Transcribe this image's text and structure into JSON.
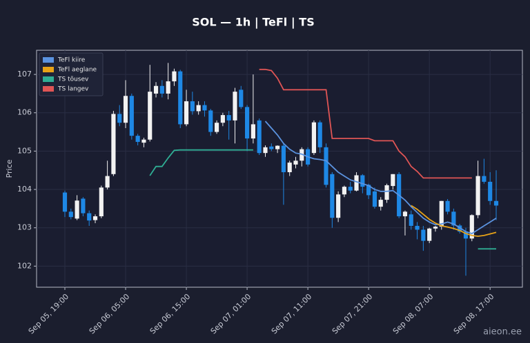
{
  "chart_data": {
    "type": "candlestick",
    "title": "SOL — 1h  |  TeFl  |  TS",
    "ylabel": "Price",
    "watermark": "aieon.ee",
    "ylim": [
      101.45,
      107.63
    ],
    "yticks": [
      102,
      103,
      104,
      105,
      106,
      107
    ],
    "grid": true,
    "legend": "upper left",
    "up_color": "#f2f2f2",
    "down_color": "#1e88e5",
    "x": [
      "Sep 05, 19:00",
      "Sep 05, 20:00",
      "Sep 05, 21:00",
      "Sep 05, 22:00",
      "Sep 05, 23:00",
      "Sep 06, 00:00",
      "Sep 06, 01:00",
      "Sep 06, 02:00",
      "Sep 06, 03:00",
      "Sep 06, 04:00",
      "Sep 06, 05:00",
      "Sep 06, 06:00",
      "Sep 06, 07:00",
      "Sep 06, 08:00",
      "Sep 06, 09:00",
      "Sep 06, 10:00",
      "Sep 06, 11:00",
      "Sep 06, 12:00",
      "Sep 06, 13:00",
      "Sep 06, 14:00",
      "Sep 06, 15:00",
      "Sep 06, 16:00",
      "Sep 06, 17:00",
      "Sep 06, 18:00",
      "Sep 06, 19:00",
      "Sep 06, 20:00",
      "Sep 06, 21:00",
      "Sep 06, 22:00",
      "Sep 06, 23:00",
      "Sep 07, 00:00",
      "Sep 07, 01:00",
      "Sep 07, 02:00",
      "Sep 07, 03:00",
      "Sep 07, 04:00",
      "Sep 07, 05:00",
      "Sep 07, 06:00",
      "Sep 07, 07:00",
      "Sep 07, 08:00",
      "Sep 07, 09:00",
      "Sep 07, 10:00",
      "Sep 07, 11:00",
      "Sep 07, 12:00",
      "Sep 07, 13:00",
      "Sep 07, 14:00",
      "Sep 07, 15:00",
      "Sep 07, 16:00",
      "Sep 07, 17:00",
      "Sep 07, 18:00",
      "Sep 07, 19:00",
      "Sep 07, 20:00",
      "Sep 07, 21:00",
      "Sep 07, 22:00",
      "Sep 07, 23:00",
      "Sep 08, 00:00",
      "Sep 08, 01:00",
      "Sep 08, 02:00",
      "Sep 08, 03:00",
      "Sep 08, 04:00",
      "Sep 08, 05:00",
      "Sep 08, 06:00",
      "Sep 08, 07:00",
      "Sep 08, 08:00",
      "Sep 08, 09:00",
      "Sep 08, 10:00",
      "Sep 08, 11:00",
      "Sep 08, 12:00",
      "Sep 08, 13:00",
      "Sep 08, 14:00",
      "Sep 08, 15:00",
      "Sep 08, 16:00",
      "Sep 08, 17:00",
      "Sep 08, 18:00"
    ],
    "xticks": [
      "Sep 05, 19:00",
      "Sep 06, 05:00",
      "Sep 06, 15:00",
      "Sep 07, 01:00",
      "Sep 07, 11:00",
      "Sep 07, 21:00",
      "Sep 08, 07:00",
      "Sep 08, 17:00"
    ],
    "open": [
      103.92,
      103.42,
      103.24,
      103.76,
      103.38,
      103.2,
      103.3,
      104.05,
      104.4,
      105.97,
      105.74,
      106.44,
      105.4,
      105.22,
      105.3,
      106.5,
      106.7,
      106.5,
      106.82,
      107.08,
      105.7,
      106.3,
      106.04,
      106.2,
      106.06,
      105.5,
      105.74,
      105.94,
      105.8,
      106.6,
      106.15,
      105.33,
      105.8,
      104.95,
      105.12,
      105.05,
      105.14,
      104.45,
      104.65,
      104.75,
      105.05,
      104.95,
      105.75,
      105.1,
      104.4,
      103.26,
      103.87,
      104.07,
      103.97,
      104.37,
      104.12,
      103.95,
      103.55,
      103.73,
      104.09,
      104.4,
      103.3,
      103.35,
      103.05,
      102.95,
      102.66,
      102.98,
      103.03,
      103.7,
      103.42,
      103.06,
      102.9,
      102.72,
      103.33,
      104.35,
      104.2,
      103.7
    ],
    "high": [
      103.97,
      103.5,
      103.85,
      103.8,
      103.45,
      103.35,
      104.1,
      104.75,
      106.05,
      106.2,
      106.85,
      106.5,
      105.45,
      105.35,
      107.25,
      106.8,
      106.85,
      107.3,
      107.15,
      107.12,
      106.6,
      106.55,
      106.3,
      106.3,
      106.1,
      105.8,
      106.0,
      106.05,
      106.65,
      106.7,
      106.2,
      107.0,
      105.85,
      105.15,
      105.2,
      105.15,
      105.2,
      104.75,
      104.85,
      105.1,
      105.1,
      105.8,
      105.8,
      105.2,
      104.45,
      103.95,
      104.1,
      104.2,
      104.45,
      104.4,
      104.15,
      104.05,
      103.8,
      104.15,
      104.4,
      104.45,
      103.45,
      103.45,
      103.15,
      103.05,
      103.0,
      103.05,
      103.7,
      103.75,
      103.5,
      103.1,
      103.0,
      103.35,
      104.75,
      104.8,
      104.45,
      104.5
    ],
    "low": [
      103.28,
      103.22,
      103.2,
      103.3,
      103.05,
      103.12,
      103.25,
      104.0,
      104.35,
      105.65,
      105.6,
      105.3,
      105.15,
      105.1,
      105.25,
      106.4,
      106.4,
      106.35,
      106.7,
      105.6,
      105.65,
      105.95,
      105.95,
      105.9,
      105.4,
      105.45,
      105.65,
      105.3,
      105.2,
      106.1,
      105.0,
      105.2,
      104.9,
      104.85,
      105.0,
      104.95,
      103.6,
      104.35,
      104.55,
      104.6,
      104.6,
      104.9,
      104.95,
      104.05,
      103.0,
      103.15,
      103.8,
      103.9,
      103.95,
      103.9,
      103.75,
      103.5,
      103.45,
      103.65,
      104.0,
      103.25,
      102.8,
      102.95,
      102.7,
      102.4,
      102.6,
      102.9,
      102.95,
      103.35,
      102.95,
      102.85,
      101.75,
      102.65,
      103.25,
      104.15,
      103.6,
      103.2
    ],
    "close": [
      103.42,
      103.28,
      103.71,
      103.38,
      103.19,
      103.3,
      104.05,
      104.35,
      105.97,
      105.74,
      106.44,
      105.4,
      105.24,
      105.3,
      106.55,
      106.7,
      106.5,
      106.82,
      107.08,
      105.7,
      106.3,
      106.04,
      106.2,
      106.06,
      105.5,
      105.74,
      105.94,
      105.8,
      106.55,
      106.15,
      105.33,
      105.7,
      104.95,
      105.1,
      105.05,
      105.14,
      104.45,
      104.7,
      104.75,
      105.05,
      104.65,
      105.75,
      105.1,
      104.12,
      103.26,
      103.87,
      104.07,
      103.97,
      104.37,
      104.07,
      103.85,
      103.55,
      103.73,
      104.11,
      104.4,
      103.3,
      103.42,
      103.05,
      102.95,
      102.66,
      102.98,
      103.03,
      103.7,
      103.42,
      103.06,
      102.9,
      102.72,
      103.33,
      104.35,
      104.2,
      103.7,
      103.58
    ],
    "series": [
      {
        "name": "TeFl kiire",
        "color": "#5b93e0",
        "values": [
          null,
          null,
          null,
          null,
          null,
          null,
          null,
          null,
          null,
          null,
          null,
          null,
          null,
          null,
          null,
          null,
          null,
          null,
          null,
          null,
          null,
          null,
          null,
          null,
          null,
          null,
          null,
          null,
          null,
          null,
          null,
          null,
          null,
          105.78,
          105.6,
          105.42,
          105.2,
          105.05,
          104.95,
          104.92,
          104.85,
          104.8,
          104.78,
          104.75,
          104.6,
          104.45,
          104.35,
          104.25,
          104.2,
          104.15,
          104.1,
          104.0,
          103.95,
          103.95,
          103.97,
          103.85,
          103.72,
          103.55,
          103.4,
          103.25,
          103.15,
          103.08,
          103.1,
          103.15,
          103.1,
          103.0,
          102.9,
          102.85,
          102.95,
          103.05,
          103.15,
          103.25
        ]
      },
      {
        "name": "TeFl aeglane",
        "color": "#e8a317",
        "values": [
          null,
          null,
          null,
          null,
          null,
          null,
          null,
          null,
          null,
          null,
          null,
          null,
          null,
          null,
          null,
          null,
          null,
          null,
          null,
          null,
          null,
          null,
          null,
          null,
          null,
          null,
          null,
          null,
          null,
          null,
          null,
          null,
          null,
          null,
          null,
          null,
          null,
          null,
          null,
          null,
          null,
          null,
          null,
          null,
          null,
          null,
          null,
          null,
          null,
          null,
          null,
          null,
          null,
          null,
          null,
          null,
          null,
          103.58,
          103.48,
          103.35,
          103.22,
          103.12,
          103.05,
          103.02,
          102.98,
          102.93,
          102.85,
          102.8,
          102.78,
          102.8,
          102.84,
          102.88
        ]
      },
      {
        "name": "TS tõusev",
        "color": "#2fae94",
        "values": [
          null,
          null,
          null,
          null,
          null,
          null,
          null,
          null,
          null,
          null,
          null,
          null,
          null,
          null,
          104.36,
          104.6,
          104.6,
          104.82,
          105.02,
          105.03,
          105.03,
          105.03,
          105.03,
          105.03,
          105.03,
          105.03,
          105.03,
          105.03,
          105.03,
          105.03,
          105.03,
          105.03,
          null,
          null,
          null,
          null,
          null,
          null,
          null,
          null,
          null,
          null,
          null,
          null,
          null,
          null,
          null,
          null,
          null,
          null,
          null,
          null,
          null,
          null,
          null,
          null,
          null,
          null,
          null,
          null,
          null,
          null,
          null,
          null,
          null,
          null,
          null,
          null,
          102.45,
          102.45,
          102.45,
          102.45
        ]
      },
      {
        "name": "TS langev",
        "color": "#e05555",
        "values": [
          null,
          null,
          null,
          null,
          null,
          null,
          null,
          null,
          null,
          null,
          null,
          null,
          null,
          null,
          null,
          null,
          null,
          null,
          null,
          null,
          null,
          null,
          null,
          null,
          null,
          null,
          null,
          null,
          null,
          null,
          null,
          null,
          107.13,
          107.13,
          107.1,
          106.9,
          106.6,
          106.6,
          106.6,
          106.6,
          106.6,
          106.6,
          106.6,
          106.6,
          105.33,
          105.33,
          105.33,
          105.33,
          105.33,
          105.33,
          105.33,
          105.27,
          105.27,
          105.27,
          105.27,
          105.0,
          104.85,
          104.6,
          104.47,
          104.3,
          104.3,
          104.3,
          104.3,
          104.3,
          104.3,
          104.3,
          104.3,
          104.3,
          null,
          null,
          null,
          null
        ]
      }
    ]
  }
}
